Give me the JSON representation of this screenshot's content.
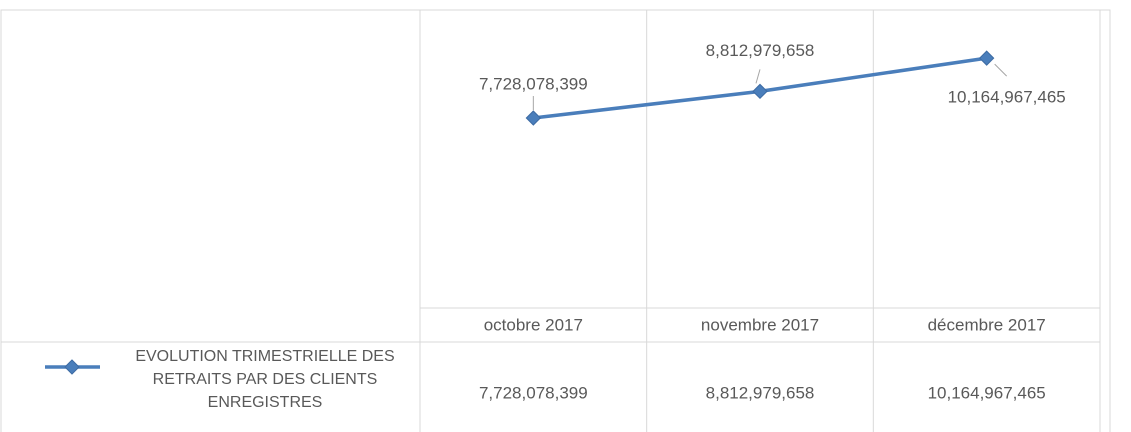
{
  "chart_data": {
    "type": "line",
    "categories": [
      "octobre 2017",
      "novembre 2017",
      "décembre 2017"
    ],
    "series": [
      {
        "name": "EVOLUTION TRIMESTRIELLE DES RETRAITS PAR DES CLIENTS ENREGISTRES",
        "color": "#4a7ebb",
        "values": [
          7728078399,
          8812979658,
          10164967465
        ],
        "value_labels": [
          "7,728,078,399",
          "8,812,979,658",
          "10,164,967,465"
        ]
      }
    ],
    "ylim": [
      0,
      12000000000
    ],
    "data_table": true
  }
}
